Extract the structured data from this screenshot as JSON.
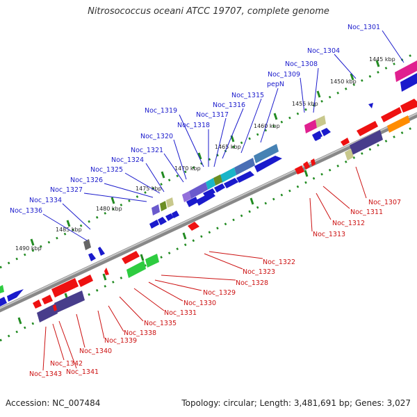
{
  "title": "Nitrosococcus oceani ATCC 19707, complete genome",
  "footer": {
    "accession": "Accession: NC_007484",
    "topology": "Topology: circular; Length: 3,481,691 bp; Genes: 3,027"
  },
  "scale_labels": [
    "1445 kbp",
    "1450 kbp",
    "1455 kbp",
    "1460 kbp",
    "1465 kbp",
    "1470 kbp",
    "1475 kbp",
    "1480 kbp",
    "1485 kbp",
    "1490 kbp"
  ],
  "top_labels": [
    "Noc_1301",
    "Noc_1304",
    "Noc_1308",
    "Noc_1309",
    "pepN",
    "Noc_1315",
    "Noc_1316",
    "Noc_1317",
    "Noc_1318",
    "Noc_1319",
    "Noc_1320",
    "Noc_1321",
    "Noc_1324",
    "Noc_1325",
    "Noc_1326",
    "Noc_1327",
    "Noc_1334",
    "Noc_1336"
  ],
  "bottom_labels": [
    "Noc_1307",
    "Noc_1311",
    "Noc_1312",
    "Noc_1313",
    "Noc_1322",
    "Noc_1323",
    "Noc_1328",
    "Noc_1329",
    "Noc_1330",
    "Noc_1331",
    "Noc_1335",
    "Noc_1338",
    "Noc_1339",
    "Noc_1340",
    "Noc_1342",
    "Noc_1341",
    "Noc_1343"
  ],
  "colors": {
    "forward_label": "#1a1acc",
    "reverse_label": "#cc1111",
    "backbone": "#999999",
    "scale_ticks": "#228b22",
    "title_text": "#333333"
  }
}
